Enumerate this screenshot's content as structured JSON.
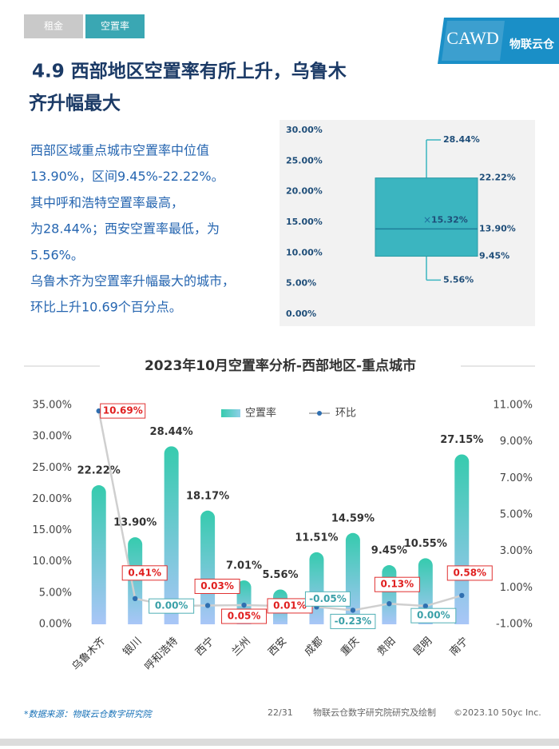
{
  "header": {
    "tabs": [
      "租金",
      "空置率"
    ],
    "logo": "CAWD",
    "logo_sub": "物联云仓"
  },
  "title_lines": [
    "4.9 西部地区空置率有所上升，乌鲁木",
    "齐升幅最大"
  ],
  "paragraph": [
    "西部区域重点城市空置率中位值",
    "13.90%，区间9.45%-22.22%。",
    "其中呼和浩特空置率最高，",
    "为28.44%；西安空置率最低，为",
    "5.56%。",
    "乌鲁木齐为空置率升幅最大的城市，",
    "环比上升10.69个百分点。"
  ],
  "chart_data": [
    {
      "type": "box",
      "values": [
        5.56,
        9.45,
        13.9,
        22.22,
        28.44
      ],
      "value_labels": [
        "5.56%",
        "9.45%",
        "13.90%",
        "22.22%",
        "28.44%"
      ],
      "mean": 15.32,
      "mean_label": "15.32%",
      "color": "#3bb5c0",
      "ylim": [
        0,
        30
      ],
      "yticks": [
        {
          "value": 0,
          "label": "0.00%"
        },
        {
          "value": 5,
          "label": "5.00%"
        },
        {
          "value": 10,
          "label": "10.00%"
        },
        {
          "value": 15,
          "label": "15.00%"
        },
        {
          "value": 20,
          "label": "20.00%"
        },
        {
          "value": 25,
          "label": "25.00%"
        },
        {
          "value": 30,
          "label": "30.00%"
        }
      ]
    },
    {
      "type": "bar_line",
      "title": "2023年10月空置率分析-西部地区-重点城市",
      "categories": [
        "乌鲁木齐",
        "银川",
        "呼和浩特",
        "西宁",
        "兰州",
        "西安",
        "成都",
        "重庆",
        "贵阳",
        "昆明",
        "南宁"
      ],
      "series": [
        {
          "name": "空置率",
          "type": "bar",
          "color": "#3cc8b0",
          "values": [
            22.22,
            13.9,
            28.44,
            18.17,
            7.01,
            5.56,
            11.51,
            14.59,
            9.45,
            10.55,
            27.15
          ],
          "value_labels": [
            "22.22%",
            "13.90%",
            "28.44%",
            "18.17%",
            "7.01%",
            "5.56%",
            "11.51%",
            "14.59%",
            "9.45%",
            "10.55%",
            "27.15%"
          ]
        },
        {
          "name": "环比",
          "type": "line",
          "axis": "y2",
          "color": "#2f6fb0",
          "values": [
            10.69,
            0.41,
            0.0,
            0.03,
            0.05,
            0.01,
            -0.05,
            -0.23,
            0.13,
            0.0,
            0.58
          ],
          "value_labels": [
            "10.69%",
            "0.41%",
            "0.00%",
            "0.03%",
            "0.05%",
            "0.01%",
            "-0.05%",
            "-0.23%",
            "0.13%",
            "0.00%",
            "0.58%"
          ]
        }
      ],
      "ylim": [
        0,
        35
      ],
      "yticks": [
        {
          "value": 0,
          "label": "0.00%"
        },
        {
          "value": 5,
          "label": "5.00%"
        },
        {
          "value": 10,
          "label": "10.00%"
        },
        {
          "value": 15,
          "label": "15.00%"
        },
        {
          "value": 20,
          "label": "20.00%"
        },
        {
          "value": 25,
          "label": "25.00%"
        },
        {
          "value": 30,
          "label": "30.00%"
        },
        {
          "value": 35,
          "label": "35.00%"
        }
      ],
      "y2lim": [
        -1,
        11
      ],
      "y2ticks": [
        {
          "value": -1,
          "label": "-1.00%"
        },
        {
          "value": 1,
          "label": "1.00%"
        },
        {
          "value": 3,
          "label": "3.00%"
        },
        {
          "value": 5,
          "label": "5.00%"
        },
        {
          "value": 7,
          "label": "7.00%"
        },
        {
          "value": 9,
          "label": "9.00%"
        },
        {
          "value": 11,
          "label": "11.00%"
        }
      ]
    }
  ],
  "footer": {
    "source": "*数据来源：物联云仓数字研究院",
    "page": "22/31",
    "credit": "物联云仓数字研究院研究及绘制",
    "copyright": "©2023.10 50yc Inc."
  }
}
